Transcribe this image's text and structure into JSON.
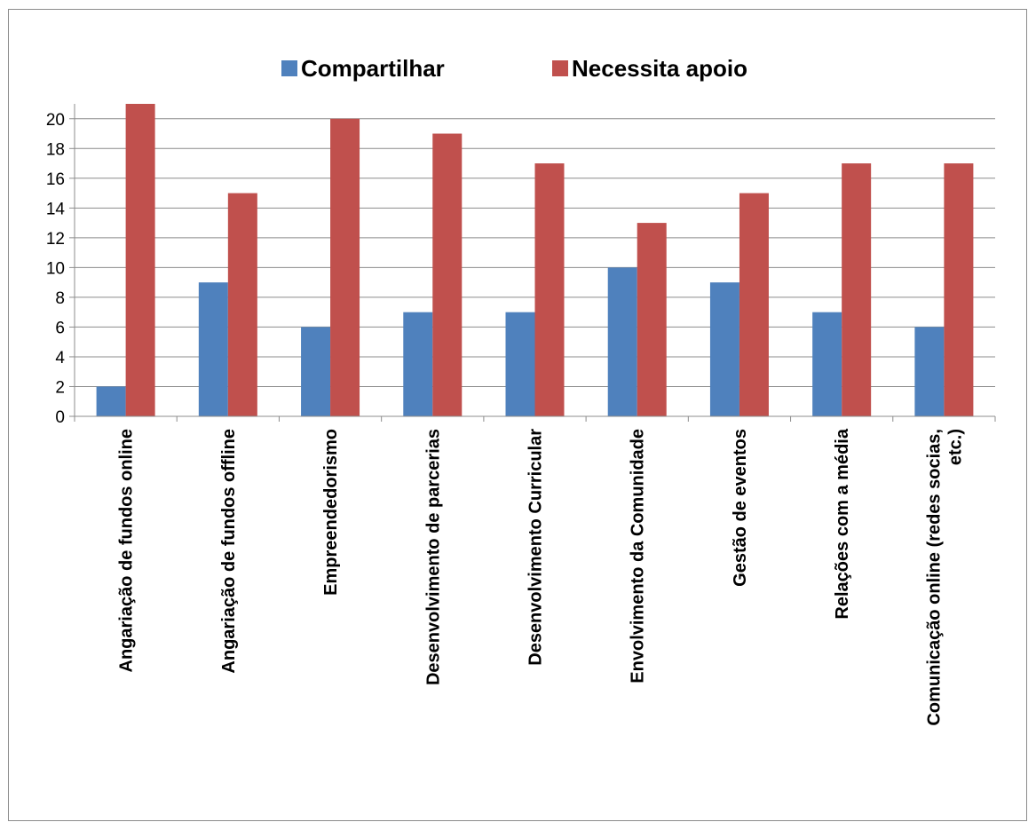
{
  "chart_data": {
    "type": "bar",
    "title": "",
    "xlabel": "",
    "ylabel": "",
    "ylim": [
      0,
      21
    ],
    "yticks": [
      0,
      2,
      4,
      6,
      8,
      10,
      12,
      14,
      16,
      18,
      20
    ],
    "grid": true,
    "legend_position": "top",
    "categories": [
      "Angariação de fundos online",
      "Angariação de fundos offline",
      "Empreendedorismo",
      "Desenvolvimento de parcerias",
      "Desenvolvimento Curricular",
      "Envolvimento da Comunidade",
      "Gestão de eventos",
      "Relações com a média",
      "Comunicação online (redes socias, etc.)"
    ],
    "series": [
      {
        "name": "Compartilhar",
        "color": "#4f81bd",
        "values": [
          2,
          9,
          6,
          7,
          7,
          10,
          9,
          7,
          6
        ]
      },
      {
        "name": "Necessita apoio",
        "color": "#c0504d",
        "values": [
          21,
          15,
          20,
          19,
          17,
          13,
          15,
          17,
          17
        ]
      }
    ]
  }
}
